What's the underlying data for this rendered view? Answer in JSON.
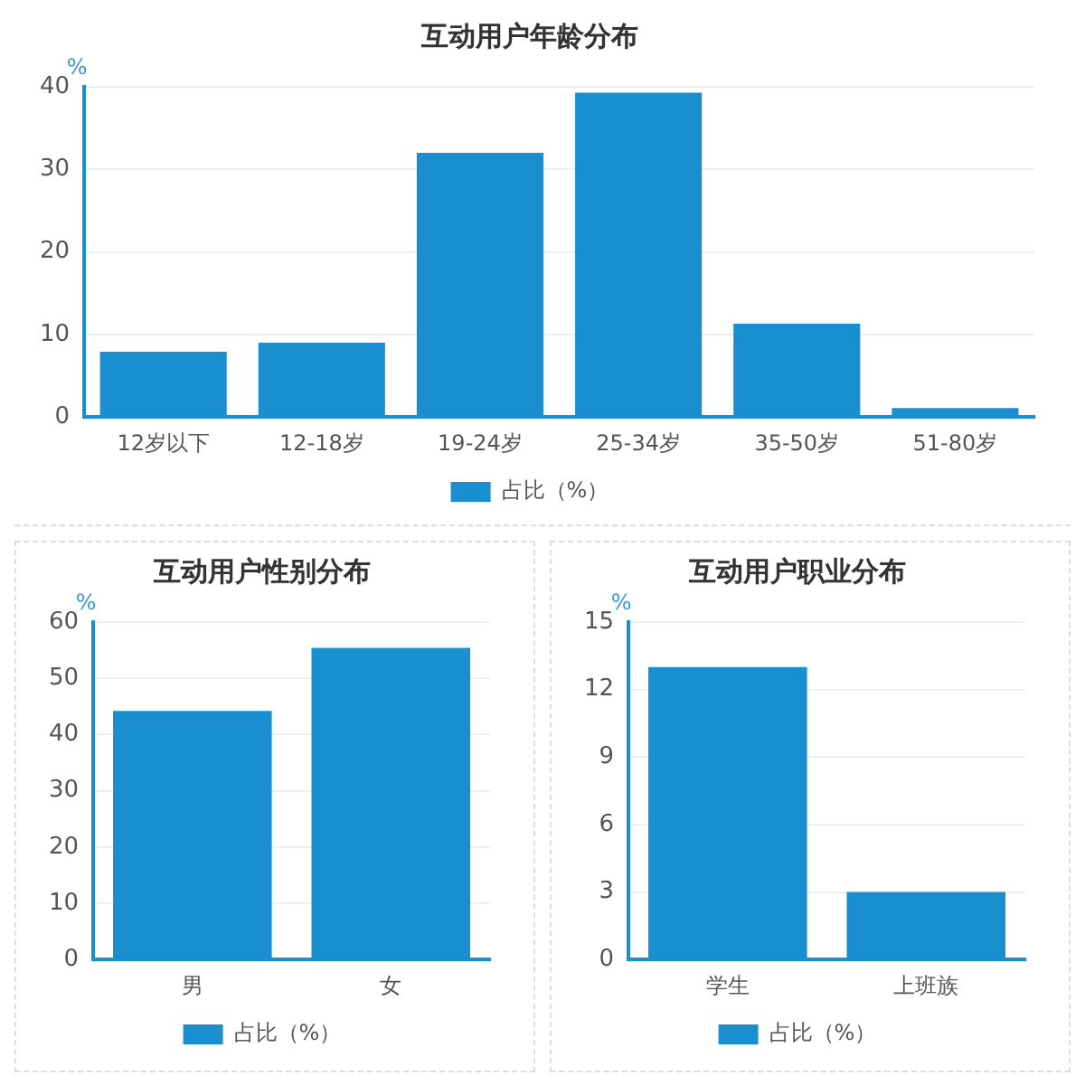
{
  "chart_data": [
    {
      "type": "bar",
      "title": "互动用户年龄分布",
      "ylabel": "%",
      "categories": [
        "12岁以下",
        "12-18岁",
        "19-24岁",
        "25-34岁",
        "35-50岁",
        "51-80岁"
      ],
      "series": [
        {
          "name": "占比（%）",
          "color": "#1a8fd0",
          "values": [
            7.9,
            9.0,
            32.0,
            39.3,
            11.3,
            1.1
          ]
        }
      ],
      "ylim": [
        0,
        40
      ],
      "yticks": [
        0,
        10,
        20,
        30,
        40
      ],
      "grid": "y",
      "legend": "bottom"
    },
    {
      "type": "bar",
      "title": "互动用户性别分布",
      "ylabel": "%",
      "categories": [
        "男",
        "女"
      ],
      "series": [
        {
          "name": "占比（%）",
          "color": "#1a8fd0",
          "values": [
            44.2,
            55.4
          ]
        }
      ],
      "ylim": [
        0,
        60
      ],
      "yticks": [
        0,
        10,
        20,
        30,
        40,
        50,
        60
      ],
      "grid": "y",
      "legend": "bottom"
    },
    {
      "type": "bar",
      "title": "互动用户职业分布",
      "ylabel": "%",
      "categories": [
        "学生",
        "上班族"
      ],
      "series": [
        {
          "name": "占比（%）",
          "color": "#1a8fd0",
          "values": [
            13.0,
            3.0
          ]
        }
      ],
      "ylim": [
        0,
        15
      ],
      "yticks": [
        0,
        3,
        6,
        9,
        12,
        15
      ],
      "grid": "y",
      "legend": "bottom"
    }
  ]
}
